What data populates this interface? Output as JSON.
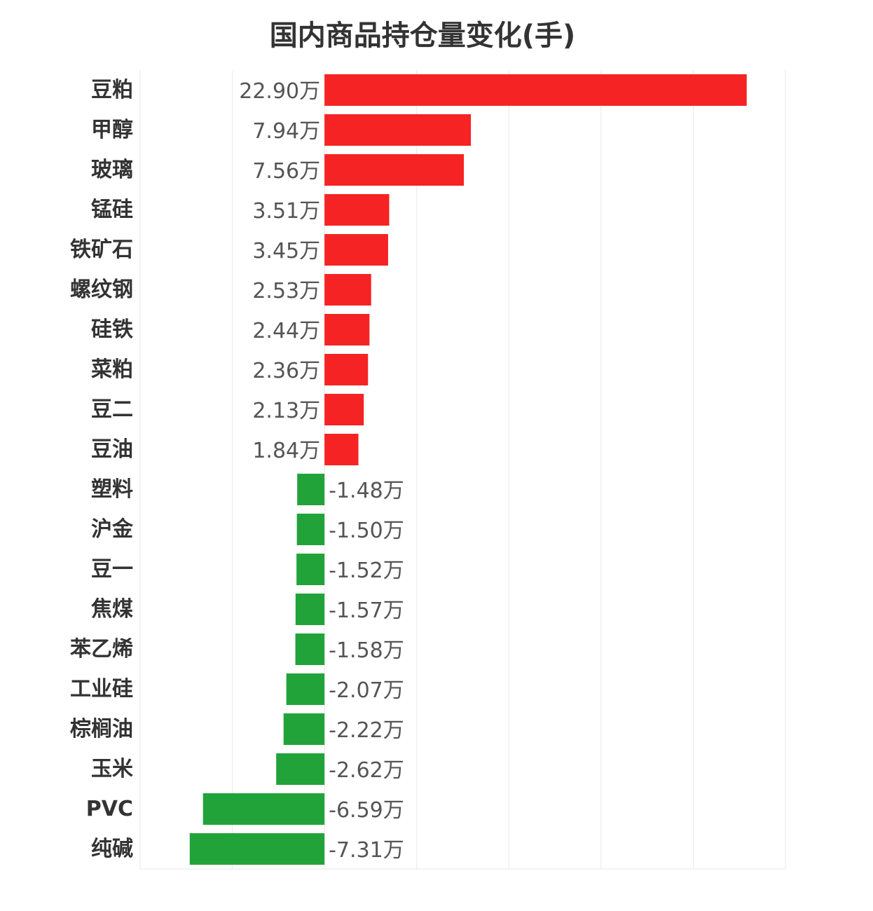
{
  "chart_data": {
    "type": "bar",
    "orientation": "horizontal",
    "title": "国内商品持仓量变化(手)",
    "categories": [
      "豆粕",
      "甲醇",
      "玻璃",
      "锰硅",
      "铁矿石",
      "螺纹钢",
      "硅铁",
      "菜粕",
      "豆二",
      "豆油",
      "塑料",
      "沪金",
      "豆一",
      "焦煤",
      "苯乙烯",
      "工业硅",
      "棕榈油",
      "玉米",
      "PVC",
      "纯碱"
    ],
    "values": [
      22.9,
      7.94,
      7.56,
      3.51,
      3.45,
      2.53,
      2.44,
      2.36,
      2.13,
      1.84,
      -1.48,
      -1.5,
      -1.52,
      -1.57,
      -1.58,
      -2.07,
      -2.22,
      -2.62,
      -6.59,
      -7.31
    ],
    "value_labels": [
      "22.90万",
      "7.94万",
      "7.56万",
      "3.51万",
      "3.45万",
      "2.53万",
      "2.44万",
      "2.36万",
      "2.13万",
      "1.84万",
      "-1.48万",
      "-1.50万",
      "-1.52万",
      "-1.57万",
      "-1.58万",
      "-2.07万",
      "-2.22万",
      "-2.62万",
      "-6.59万",
      "-7.31万"
    ],
    "unit": "万",
    "xlim": [
      -10,
      25
    ],
    "grid": true,
    "colors": {
      "positive": "#f52323",
      "negative": "#21a33a"
    }
  }
}
